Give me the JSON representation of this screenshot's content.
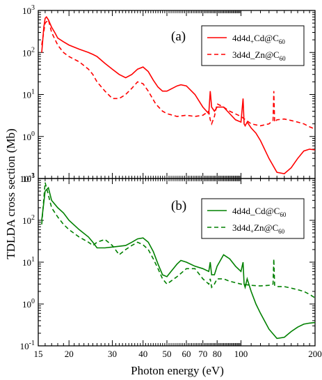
{
  "chart_data": [
    {
      "type": "line",
      "panel_label": "(a)",
      "xscale": "log",
      "yscale": "log",
      "xlim": [
        15,
        200
      ],
      "ylim": [
        0.1,
        1000
      ],
      "series": [
        {
          "name": "4d4d+Cd@C60",
          "name_parts": [
            "4d4d",
            "+",
            "Cd@C",
            "60"
          ],
          "color": "#ff0000",
          "dash": "solid",
          "x": [
            15.5,
            15.8,
            16.0,
            16.2,
            16.5,
            17.0,
            17.5,
            18,
            19,
            20,
            22,
            24,
            25,
            26,
            28,
            30,
            32,
            34,
            36,
            38,
            40,
            42,
            44,
            46,
            48,
            50,
            55,
            57,
            60,
            65,
            70,
            74,
            75,
            76,
            78,
            80,
            85,
            90,
            95,
            100,
            102,
            103,
            104,
            106,
            110,
            115,
            120,
            130,
            140,
            150,
            160,
            170,
            180,
            190,
            200
          ],
          "y": [
            100,
            400,
            650,
            700,
            600,
            400,
            300,
            220,
            180,
            150,
            120,
            100,
            90,
            80,
            55,
            40,
            30,
            25,
            30,
            40,
            45,
            35,
            22,
            15,
            12,
            12,
            16,
            17,
            16,
            10,
            5,
            3.5,
            12,
            5,
            4,
            5,
            5,
            3.5,
            2.5,
            2.2,
            8,
            2,
            1.8,
            2.2,
            1.6,
            1.2,
            0.8,
            0.3,
            0.14,
            0.13,
            0.18,
            0.3,
            0.45,
            0.5,
            0.48
          ]
        },
        {
          "name": "3d4d_Zn@C60",
          "name_parts": [
            "3d4d_Zn@C",
            "60"
          ],
          "color": "#ff0000",
          "dash": "dashed",
          "x": [
            15.5,
            16,
            16.5,
            17,
            18,
            19,
            20,
            22,
            24,
            25,
            26,
            28,
            30,
            32,
            34,
            36,
            38,
            40,
            42,
            45,
            48,
            50,
            55,
            60,
            65,
            70,
            74,
            75,
            76,
            78,
            80,
            85,
            90,
            100,
            110,
            120,
            130,
            135,
            136,
            137,
            140,
            150,
            160,
            170,
            180,
            190,
            200
          ],
          "y": [
            150,
            500,
            600,
            300,
            150,
            100,
            80,
            60,
            40,
            30,
            20,
            12,
            8,
            8,
            10,
            14,
            20,
            18,
            12,
            6,
            4,
            3.5,
            3,
            3.2,
            3,
            3.2,
            4,
            2.5,
            2,
            3,
            6,
            5,
            4,
            3,
            2,
            1.8,
            2,
            2.4,
            12,
            2.2,
            2.5,
            2.6,
            2.4,
            2.2,
            2,
            1.7,
            1.5
          ]
        }
      ]
    },
    {
      "type": "line",
      "panel_label": "(b)",
      "xscale": "log",
      "yscale": "log",
      "xlim": [
        15,
        200
      ],
      "ylim": [
        0.1,
        1000
      ],
      "series": [
        {
          "name": "4d4d_Cd@C60",
          "name_parts": [
            "4d4d_Cd@C",
            "60"
          ],
          "color": "#008000",
          "dash": "solid",
          "x": [
            15.5,
            16,
            16.5,
            17,
            18,
            19,
            20,
            22,
            24,
            25,
            26,
            28,
            30,
            32,
            34,
            36,
            38,
            40,
            42,
            44,
            46,
            48,
            50,
            52,
            55,
            57,
            60,
            65,
            70,
            74,
            75,
            76,
            78,
            80,
            85,
            90,
            95,
            100,
            102,
            103,
            104,
            106,
            110,
            115,
            120,
            130,
            140,
            150,
            160,
            170,
            180,
            190,
            200
          ],
          "y": [
            100,
            500,
            600,
            300,
            200,
            150,
            100,
            60,
            40,
            30,
            22,
            22,
            23,
            24,
            25,
            30,
            36,
            38,
            30,
            18,
            9,
            5,
            4.5,
            6,
            9,
            11,
            10,
            8,
            7,
            6,
            10,
            5,
            5,
            8,
            15,
            12,
            8,
            6,
            10,
            3,
            2.5,
            4,
            2,
            1,
            0.6,
            0.25,
            0.15,
            0.16,
            0.22,
            0.28,
            0.33,
            0.35,
            0.36
          ]
        },
        {
          "name": "3d4d+Zn@C60",
          "name_parts": [
            "3d4d",
            "+",
            "Zn@C",
            "60"
          ],
          "color": "#008000",
          "dash": "dashed",
          "x": [
            15.5,
            16,
            16.5,
            17,
            18,
            19,
            20,
            22,
            24,
            25,
            26,
            28,
            30,
            32,
            34,
            36,
            38,
            40,
            42,
            44,
            46,
            48,
            50,
            55,
            60,
            65,
            70,
            74,
            75,
            76,
            78,
            80,
            85,
            90,
            100,
            110,
            120,
            130,
            135,
            136,
            137,
            140,
            150,
            160,
            170,
            180,
            190,
            200
          ],
          "y": [
            80,
            800,
            400,
            200,
            120,
            80,
            60,
            40,
            30,
            25,
            30,
            35,
            25,
            15,
            20,
            25,
            30,
            26,
            20,
            12,
            7,
            4,
            3,
            4.5,
            7,
            7,
            4,
            3,
            4,
            2.5,
            3,
            4,
            4,
            3.5,
            3,
            2.8,
            2.7,
            2.8,
            3,
            12,
            2.8,
            2.6,
            2.6,
            2.4,
            2.2,
            2,
            1.7,
            1.4
          ]
        }
      ]
    }
  ],
  "axes": {
    "ylabel": "TDLDA cross section (Mb)",
    "xlabel": "Photon energy (eV)",
    "y_ticks": [
      {
        "v": 0.1,
        "base": "10",
        "exp": "-1"
      },
      {
        "v": 1,
        "base": "10",
        "exp": "0"
      },
      {
        "v": 10,
        "base": "10",
        "exp": "1"
      },
      {
        "v": 100,
        "base": "10",
        "exp": "2"
      },
      {
        "v": 1000,
        "base": "10",
        "exp": "3"
      }
    ],
    "x_ticks": [
      {
        "v": 15,
        "label": "15"
      },
      {
        "v": 20,
        "label": "20"
      },
      {
        "v": 30,
        "label": "30"
      },
      {
        "v": 40,
        "label": "40"
      },
      {
        "v": 50,
        "label": "50"
      },
      {
        "v": 60,
        "label": "60"
      },
      {
        "v": 70,
        "label": "70"
      },
      {
        "v": 80,
        "label": "80"
      },
      {
        "v": 100,
        "label": "100"
      },
      {
        "v": 200,
        "label": "200"
      }
    ]
  }
}
